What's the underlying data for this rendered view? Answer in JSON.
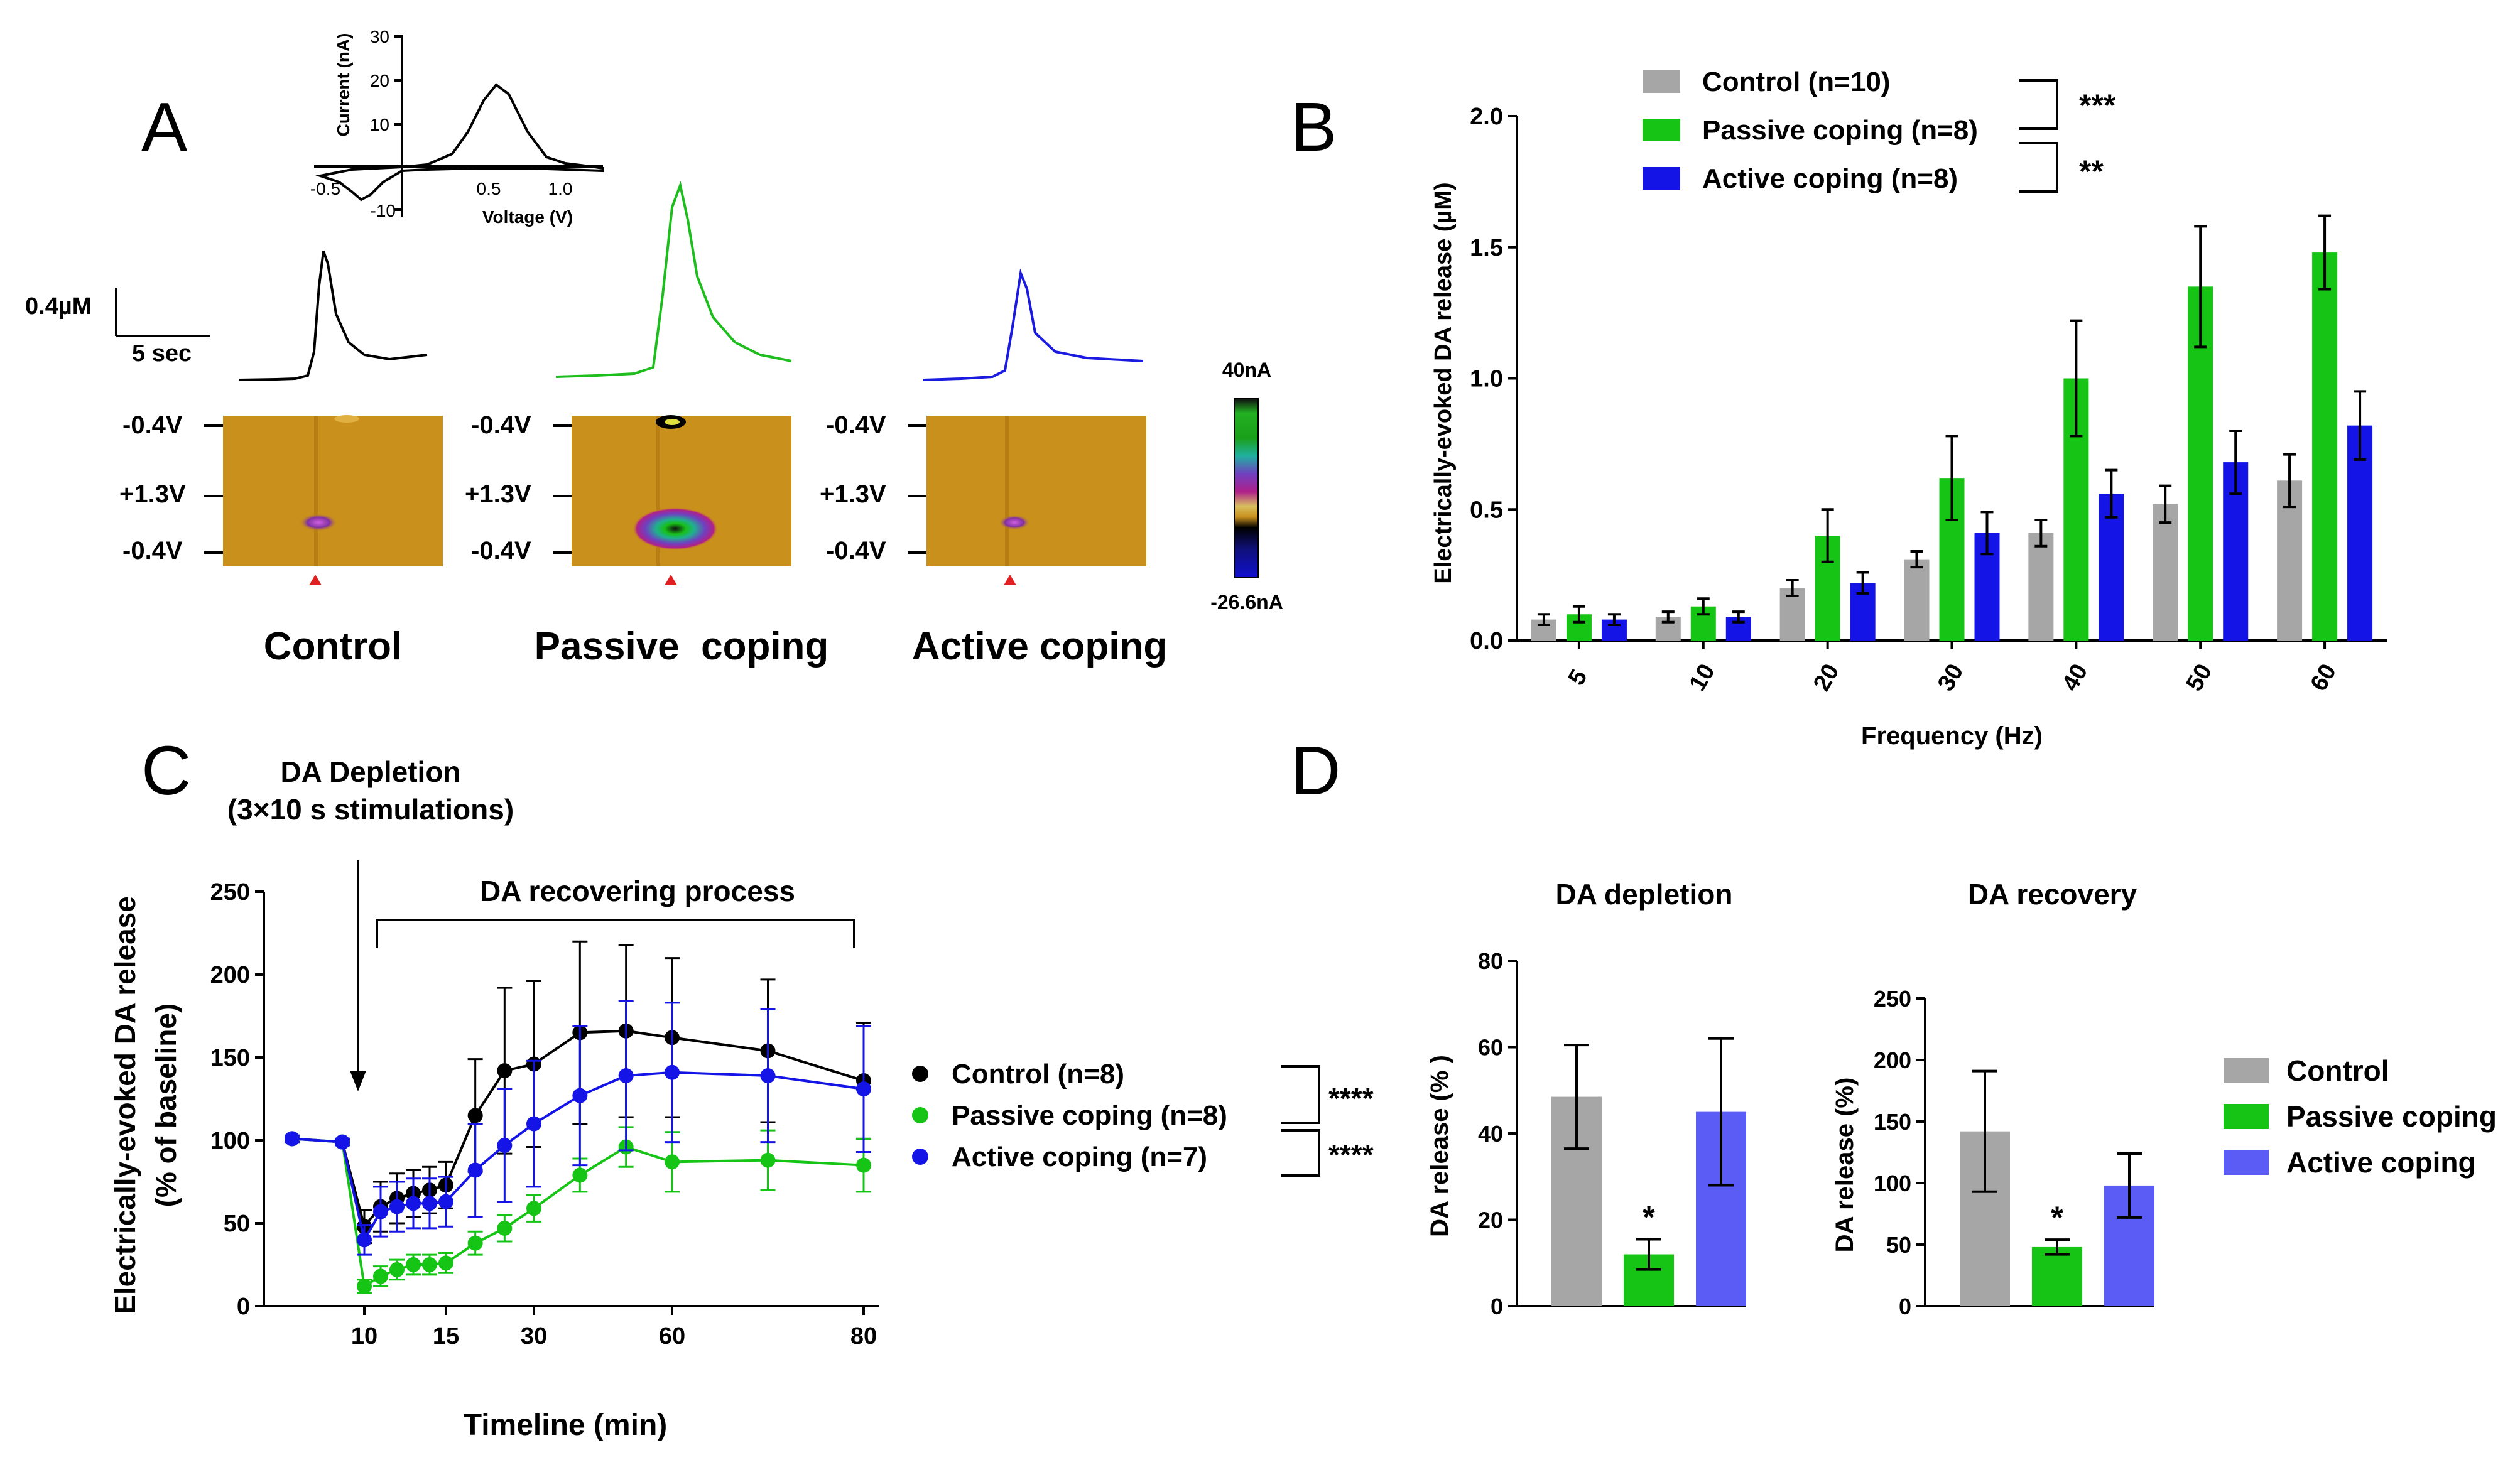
{
  "colors": {
    "control": "#a6a6a6",
    "passive": "#15c415",
    "active": "#1414e6",
    "active_light": "#5b5bf5",
    "trace_control": "#000000",
    "trace_passive": "#1ebd1e",
    "trace_active": "#1a1ae0",
    "marker": "#e02020",
    "heatmap_bg": "#c9901c"
  },
  "panels": {
    "A": {
      "letter": "A",
      "cv_inset": {
        "ylabel": "Current (nA)",
        "xlabel": "Voltage (V)",
        "yticks": [
          "30",
          "20",
          "10",
          "-10"
        ],
        "xticks": [
          "-0.5",
          "0.5",
          "1.0"
        ]
      },
      "scale_bar": {
        "concentration": "0.4µM",
        "time": "5 sec"
      },
      "voltage_labels": [
        "-0.4V",
        "+1.3V",
        "-0.4V"
      ],
      "colorbar": {
        "max": "40nA",
        "min": "-26.6nA"
      },
      "groups": [
        "Control",
        "Passive  coping",
        "Active coping"
      ]
    },
    "B": {
      "letter": "B",
      "significance": [
        "***",
        "**"
      ]
    },
    "C": {
      "letter": "C",
      "annotation_title": "DA Depletion",
      "annotation_subtitle": "(3×10 s stimulations)",
      "bracket_label": "DA recovering process",
      "significance": [
        "****",
        "****"
      ]
    },
    "D": {
      "letter": "D"
    }
  },
  "chart_data": [
    {
      "id": "B",
      "type": "bar",
      "title": "",
      "xlabel": "Frequency (Hz)",
      "ylabel": "Electrically-evoked DA release (µM)",
      "ylim": [
        0,
        2.0
      ],
      "yticks": [
        "0.0",
        "0.5",
        "1.0",
        "1.5",
        "2.0"
      ],
      "categories": [
        "5",
        "10",
        "20",
        "30",
        "40",
        "50",
        "60"
      ],
      "series": [
        {
          "name": "Control (n=10)",
          "values": [
            0.08,
            0.09,
            0.2,
            0.31,
            0.41,
            0.52,
            0.61
          ],
          "errors": [
            0.02,
            0.02,
            0.03,
            0.03,
            0.05,
            0.07,
            0.1
          ]
        },
        {
          "name": "Passive coping (n=8)",
          "values": [
            0.1,
            0.13,
            0.4,
            0.62,
            1.0,
            1.35,
            1.48
          ],
          "errors": [
            0.03,
            0.03,
            0.1,
            0.16,
            0.22,
            0.23,
            0.14
          ]
        },
        {
          "name": "Active coping (n=8)",
          "values": [
            0.08,
            0.09,
            0.22,
            0.41,
            0.56,
            0.68,
            0.82
          ],
          "errors": [
            0.02,
            0.02,
            0.04,
            0.08,
            0.09,
            0.12,
            0.13
          ]
        }
      ]
    },
    {
      "id": "C",
      "type": "line",
      "xlabel": "Timeline (min)",
      "ylabel": "Electrically-evoked DA release",
      "ylabel2": "(% of baseline)",
      "ylim": [
        0,
        250
      ],
      "yticks": [
        "0",
        "50",
        "100",
        "150",
        "200",
        "250"
      ],
      "xticks": [
        "10",
        "15",
        "30",
        "60",
        "80"
      ],
      "x": [
        -10,
        -5,
        10,
        11,
        12,
        13,
        14,
        15,
        20,
        25,
        30,
        40,
        50,
        60,
        70,
        80
      ],
      "series": [
        {
          "name": "Control (n=8)",
          "values": [
            101,
            99,
            48,
            60,
            65,
            68,
            70,
            73,
            115,
            142,
            146,
            165,
            166,
            162,
            154,
            136
          ],
          "errors": [
            2,
            2,
            10,
            15,
            15,
            14,
            14,
            14,
            34,
            50,
            50,
            55,
            52,
            48,
            43,
            35
          ]
        },
        {
          "name": "Passive coping (n=8)",
          "values": [
            101,
            99,
            12,
            18,
            22,
            25,
            25,
            26,
            38,
            47,
            59,
            79,
            96,
            87,
            88,
            85
          ],
          "errors": [
            2,
            2,
            4,
            6,
            6,
            6,
            6,
            6,
            7,
            8,
            8,
            10,
            12,
            18,
            18,
            16
          ]
        },
        {
          "name": "Active coping (n=7)",
          "values": [
            101,
            99,
            40,
            57,
            60,
            62,
            62,
            63,
            82,
            97,
            110,
            127,
            139,
            141,
            139,
            131
          ],
          "errors": [
            2,
            2,
            9,
            15,
            15,
            15,
            15,
            15,
            28,
            34,
            38,
            42,
            45,
            42,
            40,
            38
          ]
        }
      ]
    },
    {
      "id": "D1",
      "type": "bar",
      "title": "DA depletion",
      "ylabel": "DA release (% )",
      "ylim": [
        0,
        80
      ],
      "yticks": [
        "0",
        "20",
        "40",
        "60",
        "80"
      ],
      "categories": [
        "Control",
        "Passive coping",
        "Active coping"
      ],
      "values": [
        48.5,
        12,
        45
      ],
      "errors": [
        12,
        3.5,
        17
      ],
      "significance": [
        "",
        "*",
        ""
      ]
    },
    {
      "id": "D2",
      "type": "bar",
      "title": "DA recovery",
      "ylabel": "DA release (%)",
      "ylim": [
        0,
        250
      ],
      "yticks": [
        "0",
        "50",
        "100",
        "150",
        "200",
        "250"
      ],
      "categories": [
        "Control",
        "Passive coping",
        "Active coping"
      ],
      "values": [
        142,
        48,
        98
      ],
      "errors": [
        49,
        6,
        26
      ],
      "significance": [
        "",
        "*",
        ""
      ],
      "legend": [
        "Control",
        "Passive coping",
        "Active coping"
      ]
    }
  ]
}
